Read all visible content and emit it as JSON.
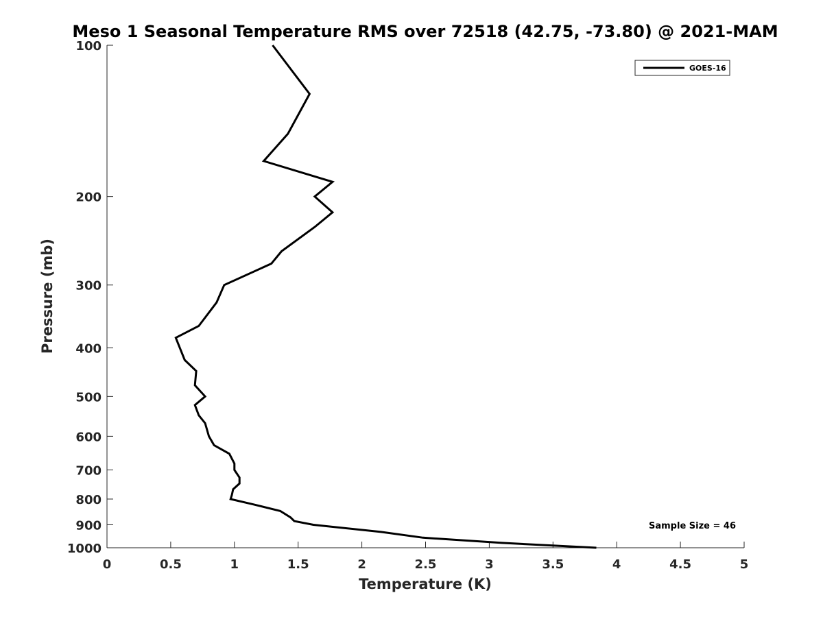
{
  "chart_data": {
    "type": "line",
    "title": "Meso 1 Seasonal Temperature RMS over 72518 (42.75, -73.80) @ 2021-MAM",
    "xlabel": "Temperature (K)",
    "ylabel": "Pressure (mb)",
    "xlim": [
      0,
      5
    ],
    "ylim": [
      100,
      1000
    ],
    "y_scale": "log",
    "y_reversed": true,
    "xticks": [
      "0",
      "0.5",
      "1",
      "1.5",
      "2",
      "2.5",
      "3",
      "3.5",
      "4",
      "4.5",
      "5"
    ],
    "yticks": [
      "100",
      "200",
      "300",
      "400",
      "500",
      "600",
      "700",
      "800",
      "900",
      "1000"
    ],
    "grid": false,
    "legend_position": "top-right",
    "annotation": "Sample Size = 46",
    "series": [
      {
        "name": "GOES-16",
        "color": "#000000",
        "points": [
          [
            1.3,
            100
          ],
          [
            1.59,
            125
          ],
          [
            1.42,
            150
          ],
          [
            1.23,
            170
          ],
          [
            1.77,
            187
          ],
          [
            1.63,
            200
          ],
          [
            1.77,
            215
          ],
          [
            1.63,
            230
          ],
          [
            1.37,
            257
          ],
          [
            1.29,
            272
          ],
          [
            0.92,
            300
          ],
          [
            0.86,
            325
          ],
          [
            0.72,
            362
          ],
          [
            0.54,
            382
          ],
          [
            0.61,
            423
          ],
          [
            0.7,
            445
          ],
          [
            0.69,
            475
          ],
          [
            0.77,
            500
          ],
          [
            0.69,
            520
          ],
          [
            0.72,
            545
          ],
          [
            0.77,
            565
          ],
          [
            0.8,
            600
          ],
          [
            0.84,
            625
          ],
          [
            0.96,
            650
          ],
          [
            1.0,
            680
          ],
          [
            1.0,
            700
          ],
          [
            1.04,
            725
          ],
          [
            1.04,
            745
          ],
          [
            0.99,
            765
          ],
          [
            0.98,
            785
          ],
          [
            0.97,
            800
          ],
          [
            1.15,
            820
          ],
          [
            1.36,
            845
          ],
          [
            1.44,
            870
          ],
          [
            1.47,
            885
          ],
          [
            1.62,
            900
          ],
          [
            2.15,
            930
          ],
          [
            2.48,
            955
          ],
          [
            3.1,
            978
          ],
          [
            3.84,
            1000
          ]
        ]
      }
    ]
  }
}
